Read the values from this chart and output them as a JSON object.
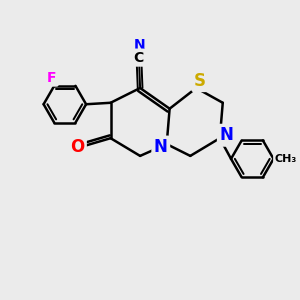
{
  "background_color": "#ebebeb",
  "atom_colors": {
    "N": "#0000ff",
    "O": "#ff0000",
    "S": "#ccaa00",
    "F": "#ff00ff",
    "C": "#000000"
  },
  "bond_color": "#000000",
  "bond_width": 1.8,
  "font_size_atom": 11,
  "font_size_small": 9
}
